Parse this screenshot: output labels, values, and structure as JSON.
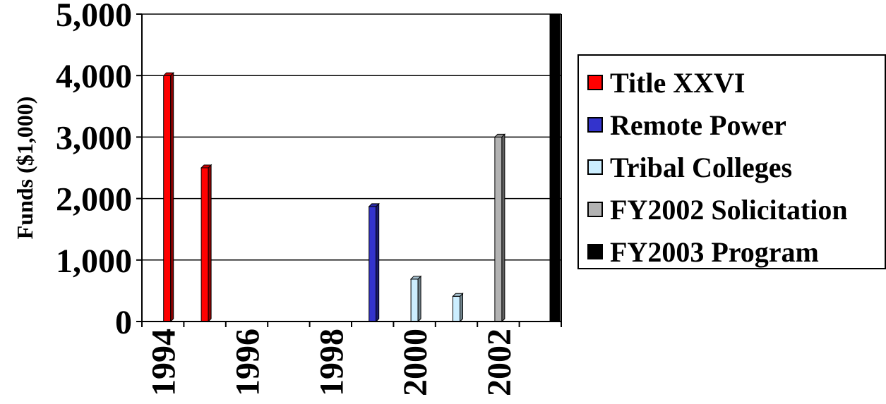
{
  "chart_data": {
    "type": "bar",
    "title": "",
    "xlabel": "",
    "ylabel": "Funds ($1,000)",
    "ylim": [
      0,
      5000
    ],
    "yticks": [
      "0",
      "1,000",
      "2,000",
      "3,000",
      "4,000",
      "5,000"
    ],
    "categories": [
      "1994",
      "1995",
      "1996",
      "1997",
      "1998",
      "1999",
      "2000",
      "2001",
      "2002",
      "2003"
    ],
    "xtick_labels": [
      "1994",
      "1996",
      "1998",
      "2000",
      "2002"
    ],
    "grid": true,
    "legend_position": "right",
    "series": [
      {
        "name": "Title XXVI",
        "color": "#ff0000",
        "values": [
          4000,
          2500,
          0,
          0,
          0,
          0,
          0,
          0,
          0,
          0
        ]
      },
      {
        "name": "Remote Power",
        "color": "#3333cc",
        "values": [
          0,
          0,
          0,
          0,
          0,
          1870,
          0,
          0,
          0,
          0
        ]
      },
      {
        "name": "Tribal Colleges",
        "color": "#cceeff",
        "values": [
          0,
          0,
          0,
          0,
          0,
          0,
          690,
          410,
          0,
          0
        ]
      },
      {
        "name": "FY2002 Solicitation",
        "color": "#b3b3b3",
        "values": [
          0,
          0,
          0,
          0,
          0,
          0,
          0,
          0,
          3000,
          0
        ]
      },
      {
        "name": "FY2003 Program",
        "color": "#000000",
        "values": [
          0,
          0,
          0,
          0,
          0,
          0,
          0,
          0,
          0,
          5000
        ]
      }
    ]
  }
}
